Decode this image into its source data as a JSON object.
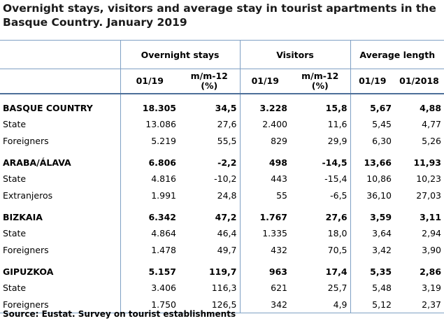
{
  "title": "Overnight stays, visitors and average stay in tourist apartments in the Basque Country. January 2019",
  "groups": {
    "overnight": "Overnight stays",
    "visitors": "Visitors",
    "average": "Average length"
  },
  "subheaders": {
    "ov_month": "01/19",
    "ov_change": "m/m-12 (%)",
    "vi_month": "01/19",
    "vi_change": "m/m-12 (%)",
    "av_month": "01/19",
    "av_prev": "01/2018"
  },
  "rows": [
    {
      "label": "BASQUE COUNTRY",
      "ov": "18.305",
      "ovc": "34,5",
      "vi": "3.228",
      "vic": "15,8",
      "av": "5,67",
      "avp": "4,88"
    },
    {
      "label": "State",
      "ov": "13.086",
      "ovc": "27,6",
      "vi": "2.400",
      "vic": "11,6",
      "av": "5,45",
      "avp": "4,77"
    },
    {
      "label": "Foreigners",
      "ov": "5.219",
      "ovc": "55,5",
      "vi": "829",
      "vic": "29,9",
      "av": "6,30",
      "avp": "5,26"
    },
    {
      "label": "ARABA/ÁLAVA",
      "ov": "6.806",
      "ovc": "-2,2",
      "vi": "498",
      "vic": "-14,5",
      "av": "13,66",
      "avp": "11,93"
    },
    {
      "label": "State",
      "ov": "4.816",
      "ovc": "-10,2",
      "vi": "443",
      "vic": "-15,4",
      "av": "10,86",
      "avp": "10,23"
    },
    {
      "label": "Extranjeros",
      "ov": "1.991",
      "ovc": "24,8",
      "vi": "55",
      "vic": "-6,5",
      "av": "36,10",
      "avp": "27,03"
    },
    {
      "label": "BIZKAIA",
      "ov": "6.342",
      "ovc": "47,2",
      "vi": "1.767",
      "vic": "27,6",
      "av": "3,59",
      "avp": "3,11"
    },
    {
      "label": "State",
      "ov": "4.864",
      "ovc": "46,4",
      "vi": "1.335",
      "vic": "18,0",
      "av": "3,64",
      "avp": "2,94"
    },
    {
      "label": "Foreigners",
      "ov": "1.478",
      "ovc": "49,7",
      "vi": "432",
      "vic": "70,5",
      "av": "3,42",
      "avp": "3,90"
    },
    {
      "label": "GIPUZKOA",
      "ov": "5.157",
      "ovc": "119,7",
      "vi": "963",
      "vic": "17,4",
      "av": "5,35",
      "avp": "2,86"
    },
    {
      "label": "State",
      "ov": "3.406",
      "ovc": "116,3",
      "vi": "621",
      "vic": "25,7",
      "av": "5,48",
      "avp": "3,19"
    },
    {
      "label": "Foreigners",
      "ov": "1.750",
      "ovc": "126,5",
      "vi": "342",
      "vic": "4,9",
      "av": "5,12",
      "avp": "2,37"
    }
  ],
  "source": "Source: Eustat. Survey on tourist establishments"
}
